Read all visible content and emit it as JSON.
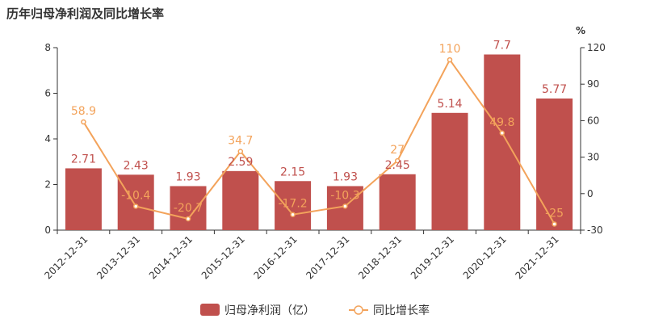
{
  "chart_data": {
    "type": "bar",
    "title": "历年归母净利润及同比增长率",
    "categories": [
      "2012-12-31",
      "2013-12-31",
      "2014-12-31",
      "2015-12-31",
      "2016-12-31",
      "2017-12-31",
      "2018-12-31",
      "2019-12-31",
      "2020-12-31",
      "2021-12-31"
    ],
    "series": [
      {
        "name": "归母净利润（亿）",
        "type": "bar",
        "axis": "left",
        "color": "#c0504d",
        "values": [
          2.71,
          2.43,
          1.93,
          2.59,
          2.15,
          1.93,
          2.45,
          5.14,
          7.7,
          5.77
        ],
        "labels": [
          "2.71",
          "2.43",
          "1.93",
          "2.59",
          "2.15",
          "1.93",
          "2.45",
          "5.14",
          "7.7",
          "5.77"
        ]
      },
      {
        "name": "同比增长率",
        "type": "line",
        "axis": "right",
        "color": "#f3a35b",
        "values": [
          58.9,
          -10.4,
          -20.7,
          34.7,
          -17.2,
          -10.3,
          27,
          110,
          49.8,
          -25
        ],
        "labels": [
          "58.9",
          "-10.4",
          "-20.7",
          "34.7",
          "-17.2",
          "-10.3",
          "27",
          "110",
          "49.8",
          "-25"
        ]
      }
    ],
    "y_left": {
      "min": 0,
      "max": 8,
      "ticks": [
        "0",
        "2",
        "4",
        "6",
        "8"
      ]
    },
    "y_right": {
      "min": -30,
      "max": 120,
      "ticks": [
        "-30",
        "0",
        "30",
        "60",
        "90",
        "120"
      ],
      "unit": "%"
    },
    "grid": false,
    "legend_position": "bottom"
  }
}
